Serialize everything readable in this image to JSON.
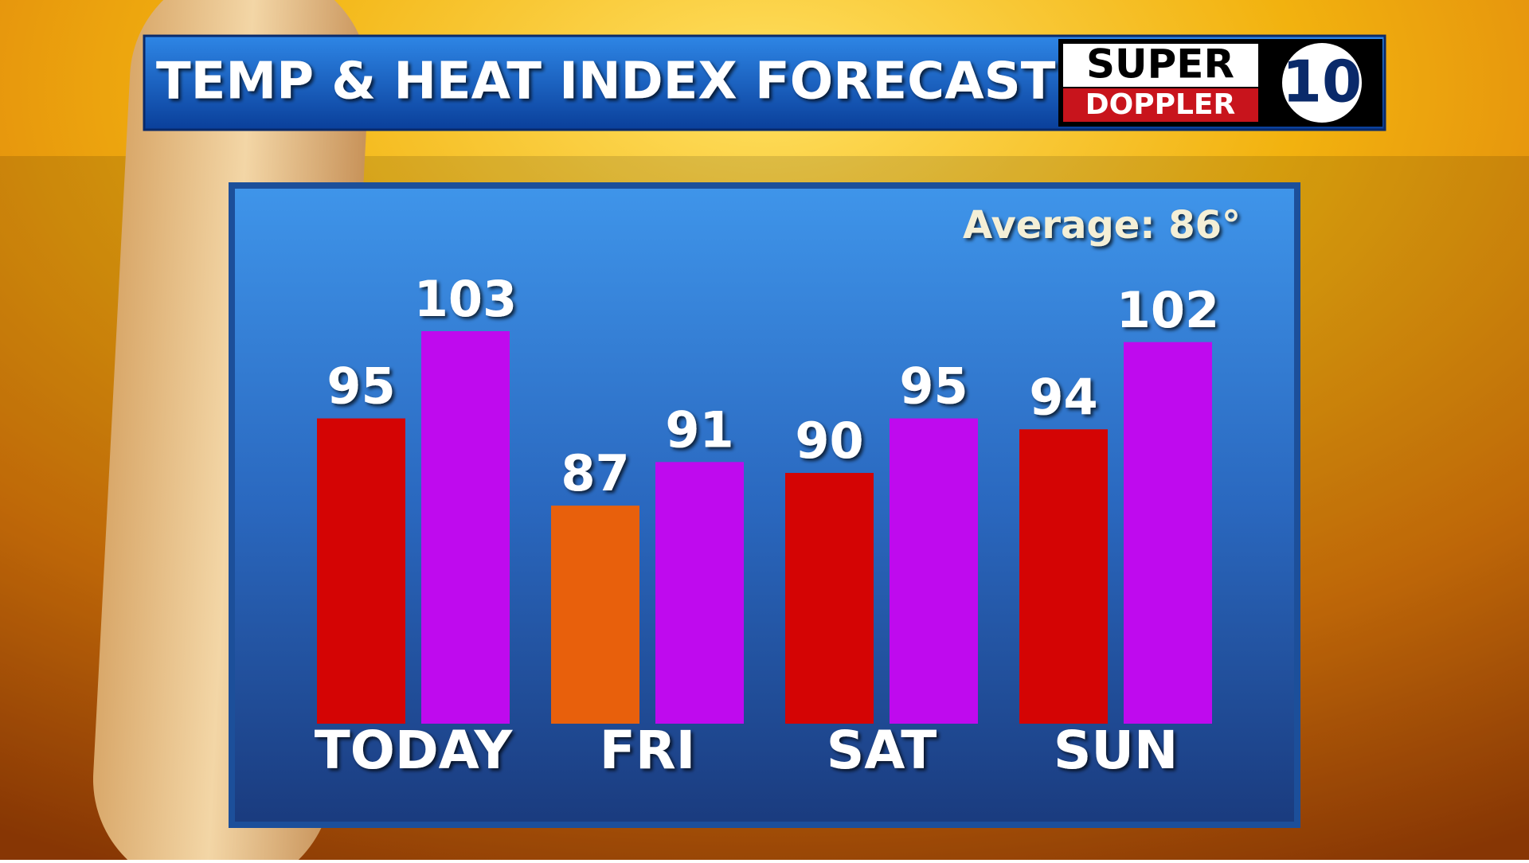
{
  "chart_data": {
    "type": "bar",
    "title": "TEMP & HEAT INDEX FORECAST",
    "annotation": "Average: 86°",
    "categories": [
      "TODAY",
      "FRI",
      "SAT",
      "SUN"
    ],
    "series": [
      {
        "colors": [
          "#d40404",
          "#e8600c",
          "#d40404",
          "#d40404"
        ],
        "values": [
          95,
          87,
          90,
          94
        ]
      },
      {
        "color": "#bf0aee",
        "values": [
          103,
          91,
          95,
          102
        ]
      }
    ]
  },
  "logo": {
    "top": "SUPER",
    "bottom": "DOPPLER",
    "number": "10"
  }
}
